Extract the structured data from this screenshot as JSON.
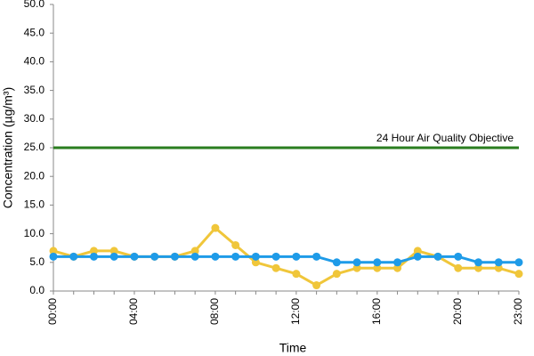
{
  "chart_data": {
    "type": "line",
    "x_label": "Time",
    "y_label": "Concentration (µg/m³)",
    "categories": [
      "00:00",
      null,
      null,
      null,
      "04:00",
      null,
      null,
      null,
      "08:00",
      null,
      null,
      null,
      "12:00",
      null,
      null,
      null,
      "16:00",
      null,
      null,
      null,
      "20:00",
      null,
      null,
      "23:00"
    ],
    "series": [
      {
        "color": "#f0c63a",
        "values": [
          7,
          6,
          7,
          7,
          6,
          6,
          6,
          7,
          11,
          8,
          5,
          4,
          3,
          1,
          3,
          4,
          4,
          4,
          7,
          6,
          4,
          4,
          4,
          3
        ]
      },
      {
        "color": "#1e9be8",
        "values": [
          6,
          6,
          6,
          6,
          6,
          6,
          6,
          6,
          6,
          6,
          6,
          6,
          6,
          6,
          5,
          5,
          5,
          5,
          6,
          6,
          6,
          5,
          5,
          5
        ]
      }
    ],
    "threshold": {
      "value": 25,
      "label": "24 Hour Air Quality Objective",
      "color": "#2a7d1f"
    },
    "ylim": [
      0,
      50
    ],
    "yticks": [
      {
        "value": 0,
        "label": "0.0"
      },
      {
        "value": 5,
        "label": "5.0"
      },
      {
        "value": 10,
        "label": "10.0"
      },
      {
        "value": 15,
        "label": "15.0"
      },
      {
        "value": 20,
        "label": "20.0"
      },
      {
        "value": 25,
        "label": "25.0"
      },
      {
        "value": 30,
        "label": "30.0"
      },
      {
        "value": 35,
        "label": "35.0"
      },
      {
        "value": 40,
        "label": "40.0"
      },
      {
        "value": 45,
        "label": "45.0"
      },
      {
        "value": 50,
        "label": "50.0"
      }
    ]
  }
}
